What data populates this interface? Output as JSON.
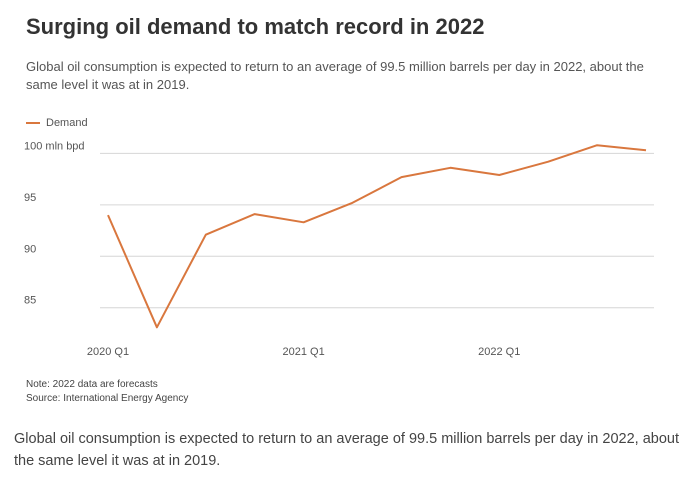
{
  "title": "Surging oil demand to match record in 2022",
  "subtitle": "Global oil consumption is expected to return to an average of 99.5 million barrels per day in 2022, about the same level it was at in 2019.",
  "legend": {
    "label": "Demand",
    "color": "#d9773e"
  },
  "note": "Note: 2022 data are forecasts",
  "source": "Source: International Energy Agency",
  "caption": "Global oil consumption is expected to return to an average of 99.5 million barrels per day in 2022, about the same level it was at in 2019.",
  "chart_data": {
    "type": "line",
    "title": "Surging oil demand to match record in 2022",
    "xlabel": "",
    "ylabel": "mln bpd",
    "ylim": [
      84,
      101.5
    ],
    "yticks": [
      {
        "value": 100,
        "label": "100 mln bpd"
      },
      {
        "value": 95,
        "label": "95"
      },
      {
        "value": 90,
        "label": "90"
      },
      {
        "value": 85,
        "label": "85"
      }
    ],
    "xticks": [
      {
        "index": 0,
        "label": "2020 Q1"
      },
      {
        "index": 4,
        "label": "2021 Q1"
      },
      {
        "index": 8,
        "label": "2022 Q1"
      }
    ],
    "categories": [
      "2020 Q1",
      "2020 Q2",
      "2020 Q3",
      "2020 Q4",
      "2021 Q1",
      "2021 Q2",
      "2021 Q3",
      "2021 Q4",
      "2022 Q1",
      "2022 Q2",
      "2022 Q3",
      "2022 Q4"
    ],
    "series": [
      {
        "name": "Demand",
        "color": "#d9773e",
        "values": [
          94.0,
          83.1,
          92.1,
          94.1,
          93.3,
          95.2,
          97.7,
          98.6,
          97.9,
          99.2,
          100.8,
          100.3
        ]
      }
    ]
  }
}
